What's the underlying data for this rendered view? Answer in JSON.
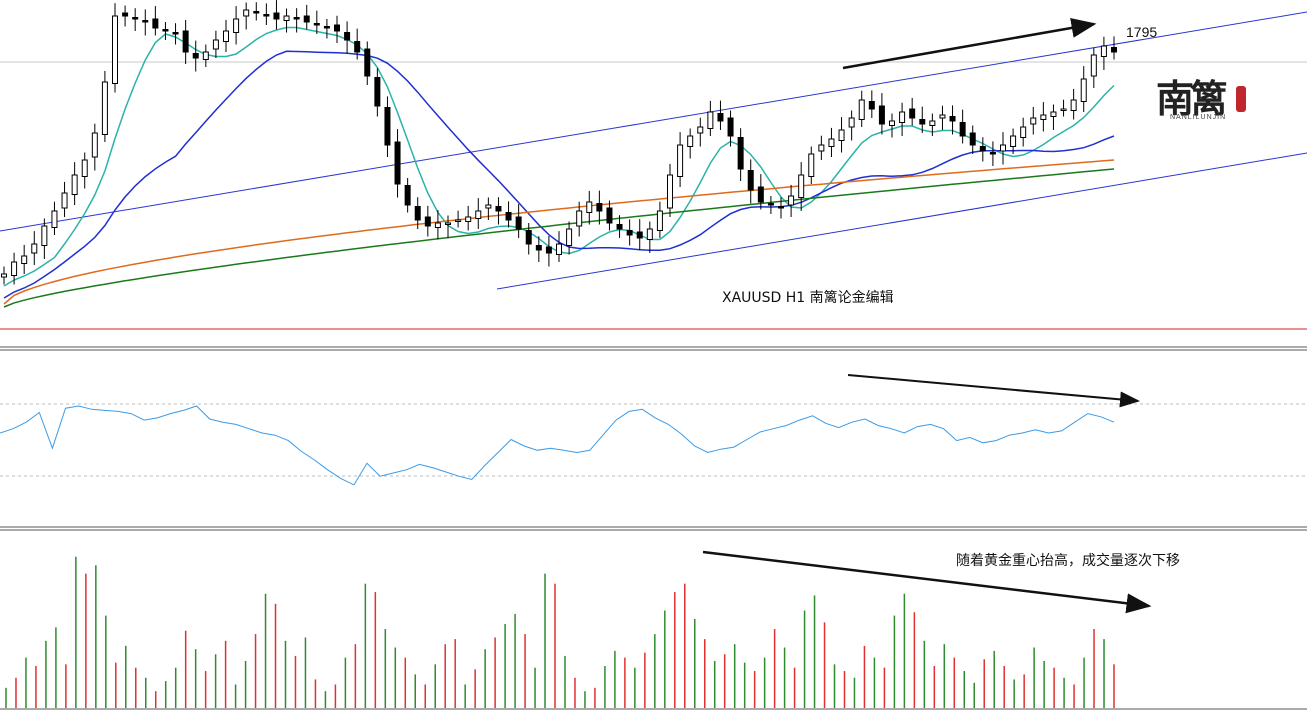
{
  "labels": {
    "price_level": "1795",
    "symbol": "XAUUSD  H1  南篱论金编辑",
    "volume_note": "随着黄金重心抬高，成交量逐次下移",
    "logo_text": "南篱",
    "logo_sub": "NANLILUNJIN"
  },
  "colors": {
    "up_candle": "#ffffff",
    "down_candle": "#000000",
    "ma_fast": "#2ab3a8",
    "ma_mid": "#1f2fd0",
    "ma_slow1": "#e06a1c",
    "ma_slow2": "#1a7a1a",
    "channel": "#2a35d0",
    "rsi": "#3a9be8",
    "volume_up": "#2e8b2e",
    "volume_down": "#e03030",
    "price_marker": "#d02020",
    "arrow": "#111111"
  },
  "chart_data": [
    {
      "type": "candlestick",
      "panel": "price",
      "symbol": "XAUUSD",
      "timeframe": "H1",
      "price_level_label": 1795,
      "series": [
        {
          "name": "",
          "kind": "ohlc",
          "values": [
            0.12,
            0.16,
            0.18,
            0.22,
            0.28,
            0.33,
            0.39,
            0.45,
            0.5,
            0.59,
            0.76,
            0.98,
            0.98,
            0.97,
            0.96,
            0.94,
            0.93,
            0.92,
            0.86,
            0.84,
            0.86,
            0.9,
            0.93,
            0.97,
            1.0,
            0.99,
            0.98,
            0.97,
            0.98,
            0.97,
            0.96,
            0.95,
            0.94,
            0.93,
            0.9,
            0.86,
            0.78,
            0.68,
            0.55,
            0.42,
            0.35,
            0.3,
            0.28,
            0.29,
            0.29,
            0.3,
            0.31,
            0.33,
            0.35,
            0.33,
            0.3,
            0.27,
            0.22,
            0.2,
            0.19,
            0.22,
            0.27,
            0.33,
            0.36,
            0.33,
            0.29,
            0.27,
            0.25,
            0.24,
            0.27,
            0.33,
            0.45,
            0.55,
            0.58,
            0.61,
            0.66,
            0.63,
            0.58,
            0.47,
            0.4,
            0.36,
            0.35,
            0.34,
            0.38,
            0.45,
            0.52,
            0.55,
            0.57,
            0.6,
            0.64,
            0.7,
            0.67,
            0.62,
            0.63,
            0.66,
            0.64,
            0.62,
            0.63,
            0.65,
            0.63,
            0.58,
            0.55,
            0.53,
            0.52,
            0.55,
            0.58,
            0.61,
            0.64,
            0.65,
            0.66,
            0.67,
            0.7,
            0.77,
            0.85,
            0.88,
            0.86
          ]
        },
        {
          "name": "",
          "kind": "ma_fast"
        },
        {
          "name": "",
          "kind": "ma_mid"
        },
        {
          "name": "",
          "kind": "ma_slow1"
        },
        {
          "name": "",
          "kind": "ma_slow2"
        }
      ],
      "grid": false
    },
    {
      "type": "line",
      "panel": "oscillator",
      "series": [
        {
          "name": "",
          "values": [
            0.62,
            0.66,
            0.72,
            0.81,
            0.48,
            0.85,
            0.87,
            0.84,
            0.83,
            0.82,
            0.8,
            0.74,
            0.76,
            0.8,
            0.83,
            0.87,
            0.75,
            0.72,
            0.7,
            0.66,
            0.62,
            0.6,
            0.55,
            0.45,
            0.37,
            0.28,
            0.2,
            0.14,
            0.34,
            0.22,
            0.25,
            0.28,
            0.33,
            0.3,
            0.26,
            0.22,
            0.19,
            0.32,
            0.44,
            0.56,
            0.5,
            0.46,
            0.48,
            0.46,
            0.44,
            0.46,
            0.6,
            0.74,
            0.82,
            0.84,
            0.76,
            0.7,
            0.61,
            0.5,
            0.44,
            0.47,
            0.49,
            0.56,
            0.63,
            0.66,
            0.69,
            0.74,
            0.78,
            0.71,
            0.67,
            0.72,
            0.75,
            0.69,
            0.66,
            0.62,
            0.68,
            0.7,
            0.66,
            0.55,
            0.58,
            0.53,
            0.55,
            0.6,
            0.62,
            0.65,
            0.62,
            0.64,
            0.72,
            0.8,
            0.77,
            0.72
          ]
        }
      ],
      "reference_lines": [
        0.7,
        0.3
      ],
      "grid": false
    },
    {
      "type": "bar",
      "panel": "volume",
      "series": [
        {
          "name": "",
          "values": [
            0.12,
            0.18,
            0.3,
            0.25,
            0.4,
            0.48,
            0.26,
            0.9,
            0.8,
            0.85,
            0.55,
            0.27,
            0.37,
            0.24,
            0.18,
            0.1,
            0.16,
            0.24,
            0.46,
            0.35,
            0.22,
            0.32,
            0.4,
            0.14,
            0.28,
            0.44,
            0.68,
            0.62,
            0.4,
            0.31,
            0.42,
            0.17,
            0.1,
            0.14,
            0.3,
            0.38,
            0.74,
            0.69,
            0.47,
            0.36,
            0.3,
            0.2,
            0.14,
            0.26,
            0.38,
            0.41,
            0.14,
            0.23,
            0.35,
            0.42,
            0.5,
            0.56,
            0.44,
            0.24,
            0.8,
            0.74,
            0.31,
            0.18,
            0.1,
            0.12,
            0.25,
            0.34,
            0.3,
            0.24,
            0.33,
            0.44,
            0.58,
            0.69,
            0.74,
            0.53,
            0.41,
            0.28,
            0.32,
            0.38,
            0.27,
            0.22,
            0.3,
            0.47,
            0.36,
            0.24,
            0.58,
            0.67,
            0.51,
            0.26,
            0.22,
            0.18,
            0.37,
            0.3,
            0.24,
            0.55,
            0.68,
            0.57,
            0.4,
            0.25,
            0.38,
            0.3,
            0.22,
            0.15,
            0.29,
            0.34,
            0.25,
            0.17,
            0.2,
            0.36,
            0.28,
            0.24,
            0.18,
            0.14,
            0.3,
            0.47,
            0.41,
            0.26
          ],
          "directions": [
            "u",
            "d",
            "u",
            "d",
            "u",
            "u",
            "d",
            "u",
            "d",
            "u",
            "u",
            "d",
            "u",
            "d",
            "u",
            "d",
            "u",
            "u",
            "d",
            "u",
            "d",
            "u",
            "d",
            "u",
            "u",
            "d",
            "u",
            "d",
            "u",
            "d",
            "u",
            "d",
            "u",
            "d",
            "u",
            "d",
            "u",
            "d",
            "u",
            "u",
            "d",
            "u",
            "d",
            "u",
            "d",
            "d",
            "u",
            "d",
            "u",
            "d",
            "u",
            "u",
            "d",
            "u",
            "u",
            "d",
            "u",
            "d",
            "u",
            "d",
            "u",
            "u",
            "d",
            "u",
            "d",
            "u",
            "u",
            "d",
            "d",
            "u",
            "d",
            "u",
            "d",
            "u",
            "u",
            "d",
            "u",
            "d",
            "u",
            "d",
            "u",
            "u",
            "d",
            "u",
            "d",
            "u",
            "d",
            "u",
            "d",
            "u",
            "u",
            "d",
            "u",
            "d",
            "u",
            "d",
            "u",
            "u",
            "d",
            "u",
            "d",
            "u",
            "d",
            "u",
            "u",
            "d",
            "u",
            "d",
            "u",
            "d",
            "u",
            "d"
          ]
        }
      ],
      "grid": false
    }
  ]
}
